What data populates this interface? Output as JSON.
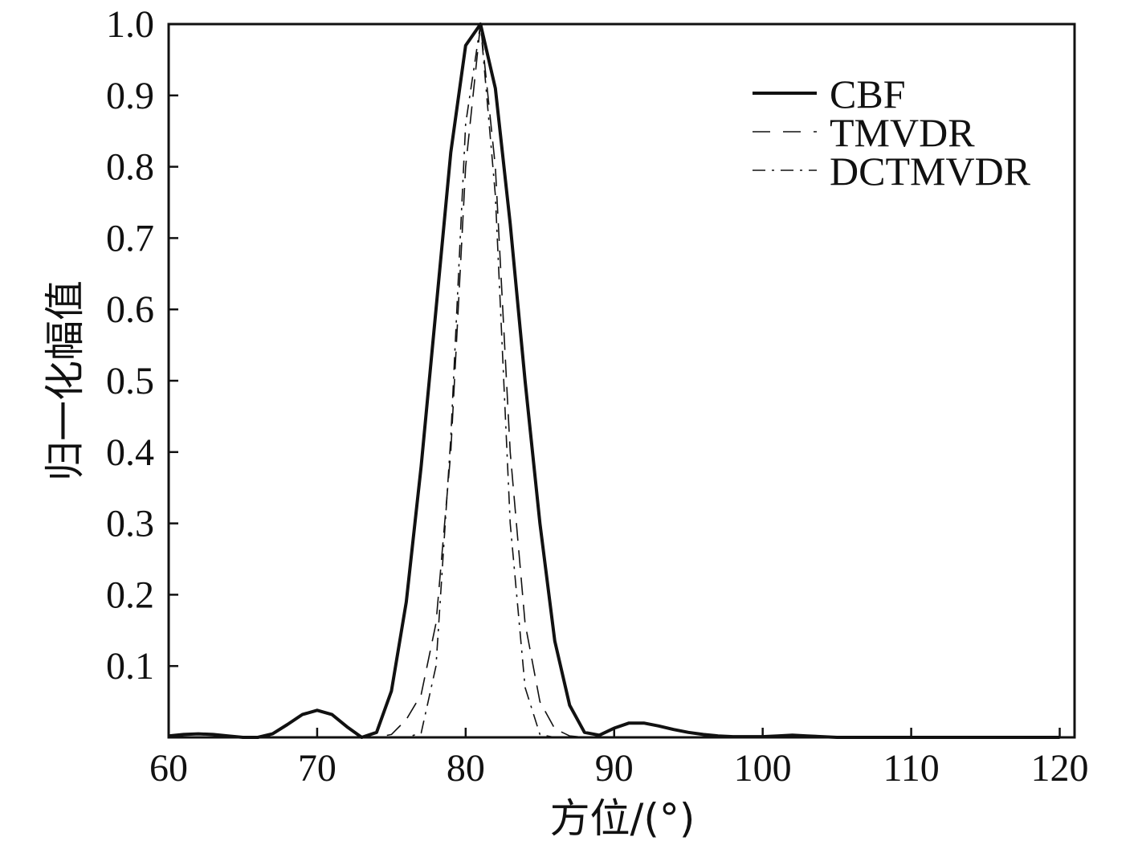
{
  "chart_data": {
    "type": "line",
    "title": "",
    "xlabel": "方位/(°)",
    "ylabel": "归一化幅值",
    "xlim": [
      60,
      121
    ],
    "ylim": [
      0,
      1.0
    ],
    "xticks": [
      60,
      70,
      80,
      90,
      100,
      110,
      120
    ],
    "yticks": [
      0.1,
      0.2,
      0.3,
      0.4,
      0.5,
      0.6,
      0.7,
      0.8,
      0.9,
      1.0
    ],
    "xtick_labels": [
      "60",
      "70",
      "80",
      "90",
      "100",
      "110",
      "120"
    ],
    "ytick_labels": [
      "0.1",
      "0.2",
      "0.3",
      "0.4",
      "0.5",
      "0.6",
      "0.7",
      "0.8",
      "0.9",
      "1.0"
    ],
    "grid": false,
    "legend_position": "top-right",
    "series": [
      {
        "name": "CBF",
        "style": "solid",
        "color": "#111111",
        "x": [
          60,
          61,
          62,
          63,
          64,
          65,
          66,
          67,
          68,
          69,
          70,
          71,
          72,
          73,
          74,
          75,
          76,
          77,
          78,
          79,
          80,
          81,
          82,
          83,
          84,
          85,
          86,
          87,
          88,
          89,
          90,
          91,
          92,
          93,
          94,
          95,
          96,
          97,
          98,
          99,
          100,
          101,
          102,
          103,
          104,
          105,
          110,
          115,
          120
        ],
        "y": [
          0.002,
          0.004,
          0.005,
          0.004,
          0.002,
          0.0,
          0.0,
          0.005,
          0.018,
          0.032,
          0.038,
          0.032,
          0.015,
          0.0,
          0.007,
          0.065,
          0.19,
          0.38,
          0.6,
          0.82,
          0.97,
          1.0,
          0.91,
          0.72,
          0.5,
          0.3,
          0.135,
          0.045,
          0.007,
          0.003,
          0.013,
          0.02,
          0.02,
          0.016,
          0.011,
          0.007,
          0.004,
          0.002,
          0.001,
          0.001,
          0.001,
          0.002,
          0.003,
          0.002,
          0.001,
          0.0,
          0.0,
          0.0,
          0.0
        ]
      },
      {
        "name": "TMVDR",
        "style": "dashed",
        "color": "#111111",
        "x": [
          60,
          74,
          75,
          76,
          77,
          78,
          79,
          80,
          81,
          82,
          83,
          84,
          85,
          86,
          87,
          88,
          120
        ],
        "y": [
          0.0,
          0.0,
          0.004,
          0.025,
          0.06,
          0.16,
          0.4,
          0.8,
          1.0,
          0.8,
          0.4,
          0.16,
          0.05,
          0.012,
          0.002,
          0.0,
          0.0
        ]
      },
      {
        "name": "DCTMVDR",
        "style": "dashdot",
        "color": "#111111",
        "x": [
          60,
          76,
          77,
          78,
          79,
          80,
          81,
          82,
          83,
          84,
          85,
          86,
          120
        ],
        "y": [
          0.0,
          0.0,
          0.006,
          0.1,
          0.42,
          0.86,
          1.0,
          0.76,
          0.3,
          0.07,
          0.004,
          0.0,
          0.0
        ]
      }
    ]
  }
}
